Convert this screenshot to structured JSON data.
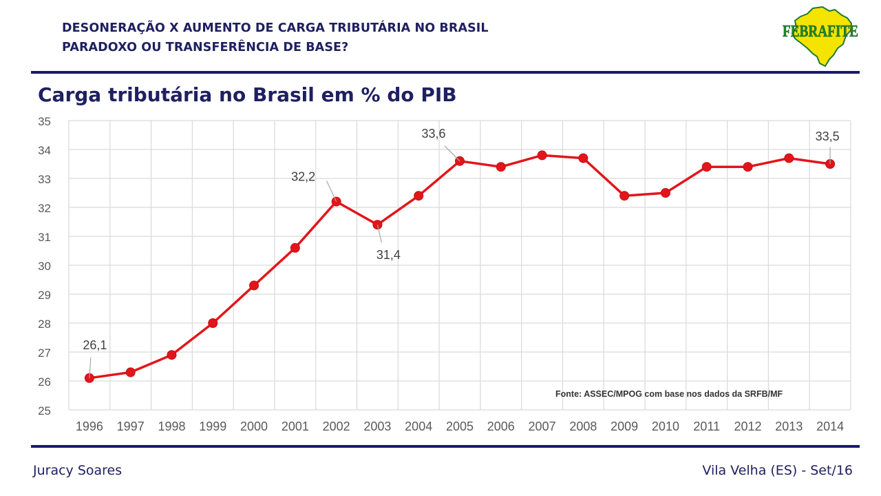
{
  "header": {
    "line1": "DESONERAÇÃO X AUMENTO DE CARGA TRIBUTÁRIA NO BRASIL",
    "line2": "PARADOXO OU TRANSFERÊNCIA DE BASE?"
  },
  "logo": {
    "text": "FEBRAFITE",
    "icon": "brazil-map-logo",
    "colors": {
      "map": "#f5e400",
      "text": "#1c8a2c",
      "outline": "#1e7a30"
    }
  },
  "slide_title": "Carga tributária no Brasil em % do PIB",
  "chart_data": {
    "type": "line",
    "title": "",
    "xlabel": "",
    "ylabel": "",
    "x": [
      "1996",
      "1997",
      "1998",
      "1999",
      "2000",
      "2001",
      "2002",
      "2003",
      "2004",
      "2005",
      "2006",
      "2007",
      "2008",
      "2009",
      "2010",
      "2011",
      "2012",
      "2013",
      "2014"
    ],
    "series": [
      {
        "color": "#e3151b",
        "values": [
          26.1,
          26.3,
          26.9,
          28.0,
          29.3,
          30.6,
          32.2,
          31.4,
          32.4,
          33.6,
          33.4,
          33.8,
          33.7,
          32.4,
          32.5,
          33.4,
          33.4,
          33.7,
          33.5
        ]
      }
    ],
    "ylim": [
      25,
      35
    ],
    "yticks": [
      "25",
      "26",
      "27",
      "28",
      "29",
      "30",
      "31",
      "32",
      "33",
      "34",
      "35"
    ],
    "grid": true,
    "annotations": [
      {
        "x": "1996",
        "text": "26,1"
      },
      {
        "x": "2002",
        "text": "32,2"
      },
      {
        "x": "2003",
        "text": "31,4"
      },
      {
        "x": "2005",
        "text": "33,6"
      },
      {
        "x": "2014",
        "text": "33,5"
      }
    ],
    "source_note": "Fonte: ASSEC/MPOG com base nos dados da SRFB/MF"
  },
  "footer": {
    "author": "Juracy Soares",
    "place_date": "Vila Velha (ES) - Set/16"
  }
}
